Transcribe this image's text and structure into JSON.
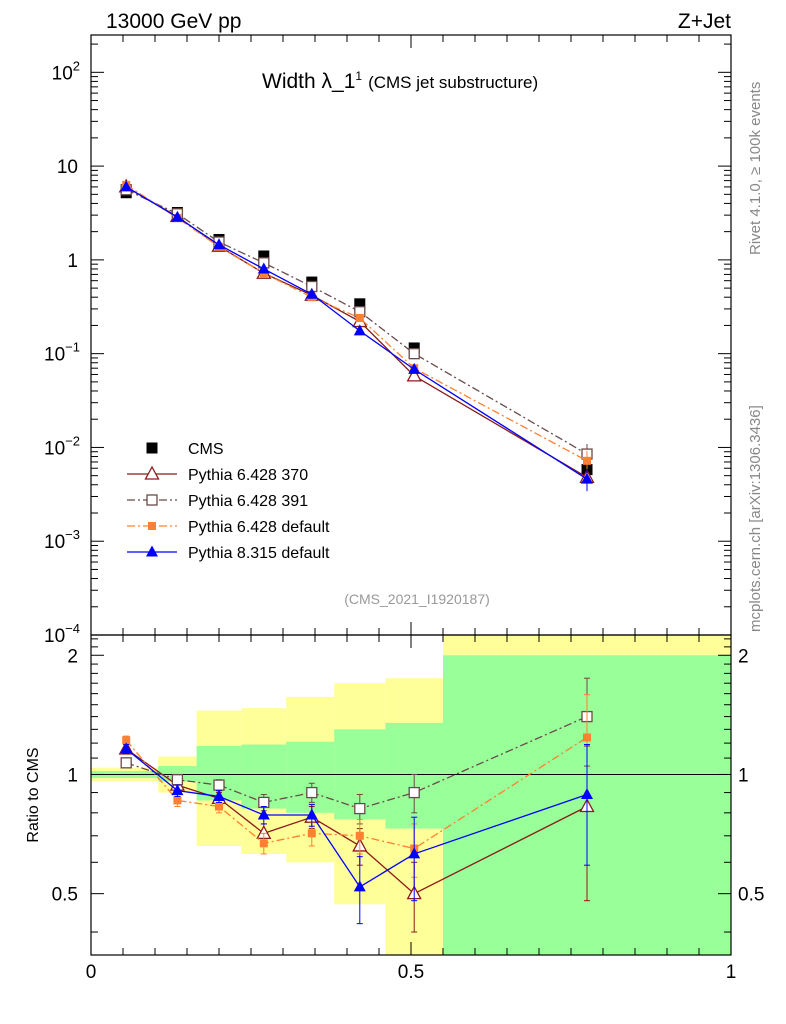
{
  "header": {
    "energy_label": "13000 GeV pp",
    "process_label": "Z+Jet"
  },
  "side_labels": {
    "rivet": "Rivet 4.1.0, ≥ 100k events",
    "mcplots": "mcplots.cern.ch [arXiv:1306.3436]"
  },
  "chart_data": [
    {
      "panel": "main",
      "type": "scatter",
      "title_main": "Width λ_1",
      "title_sup": "1",
      "title_sub": "(CMS jet substructure)",
      "analysis_id": "(CMS_2021_I1920187)",
      "yscale": "log",
      "ylim": [
        0.0001,
        250
      ],
      "xlim": [
        0,
        1
      ],
      "yticks": [
        {
          "base": "10",
          "exp": "2"
        },
        {
          "base": "10",
          "exp": ""
        },
        {
          "base": "1",
          "exp": ""
        },
        {
          "base": "10",
          "exp": "−1"
        },
        {
          "base": "10",
          "exp": "−2"
        },
        {
          "base": "10",
          "exp": "−3"
        },
        {
          "base": "10",
          "exp": "−4"
        }
      ],
      "x": [
        0.055,
        0.135,
        0.2,
        0.27,
        0.345,
        0.42,
        0.505,
        0.775
      ],
      "series": [
        {
          "name": "CMS",
          "color": "#000000",
          "marker": "square-filled",
          "line": "none",
          "values": [
            5.2,
            3.2,
            1.65,
            1.1,
            0.58,
            0.34,
            0.115,
            0.0058
          ]
        },
        {
          "name": "Pythia 6.428 370",
          "color": "#8b1a1a",
          "marker": "triangle-open",
          "line": "solid",
          "values": [
            6.0,
            2.9,
            1.4,
            0.72,
            0.42,
            0.22,
            0.058,
            0.0048
          ]
        },
        {
          "name": "Pythia 6.428 391",
          "color": "#6b4a4a",
          "marker": "square-open",
          "line": "dashdot",
          "values": [
            5.6,
            3.1,
            1.55,
            0.93,
            0.52,
            0.28,
            0.1,
            0.0085
          ]
        },
        {
          "name": "Pythia 6.428 default",
          "color": "#ff8030",
          "marker": "square-filled-small",
          "line": "dashdot",
          "values": [
            6.3,
            2.8,
            1.38,
            0.72,
            0.4,
            0.24,
            0.07,
            0.0072
          ]
        },
        {
          "name": "Pythia 8.315 default",
          "color": "#0000ff",
          "marker": "triangle-filled",
          "line": "solid",
          "values": [
            6.0,
            2.85,
            1.45,
            0.8,
            0.43,
            0.175,
            0.068,
            0.0046
          ]
        }
      ]
    },
    {
      "panel": "ratio",
      "type": "scatter",
      "ylabel": "Ratio to CMS",
      "xlim": [
        0,
        1
      ],
      "ylim": [
        0.35,
        2.25
      ],
      "yticks": [
        "2",
        "1",
        "0.5"
      ],
      "xticks": [
        "0",
        "0.5",
        "1"
      ],
      "bin_edges": [
        0,
        0.105,
        0.165,
        0.235,
        0.305,
        0.38,
        0.46,
        0.55,
        1.0
      ],
      "green_band": {
        "lower": [
          0.98,
          0.96,
          0.86,
          0.82,
          0.8,
          0.77,
          0.73,
          0.35
        ],
        "upper": [
          1.02,
          1.05,
          1.18,
          1.19,
          1.21,
          1.3,
          1.35,
          2.0
        ]
      },
      "yellow_band": {
        "lower": [
          0.96,
          0.9,
          0.66,
          0.63,
          0.6,
          0.47,
          0.35,
          0.35
        ],
        "upper": [
          1.04,
          1.11,
          1.45,
          1.47,
          1.57,
          1.7,
          1.75,
          2.25
        ]
      },
      "x": [
        0.055,
        0.135,
        0.2,
        0.27,
        0.345,
        0.42,
        0.505,
        0.775
      ],
      "series": [
        {
          "name": "Pythia 6.428 370",
          "color": "#8b1a1a",
          "marker": "triangle-open",
          "line": "solid",
          "values": [
            1.16,
            0.94,
            0.87,
            0.71,
            0.78,
            0.66,
            0.5,
            0.83
          ],
          "err": [
            0.03,
            0.03,
            0.03,
            0.04,
            0.05,
            0.07,
            0.1,
            0.35
          ]
        },
        {
          "name": "Pythia 6.428 391",
          "color": "#6b4a4a",
          "marker": "square-open",
          "line": "dashdot",
          "values": [
            1.07,
            0.97,
            0.94,
            0.85,
            0.9,
            0.82,
            0.9,
            1.4
          ],
          "err": [
            0.03,
            0.03,
            0.03,
            0.04,
            0.05,
            0.07,
            0.1,
            0.35
          ]
        },
        {
          "name": "Pythia 6.428 default",
          "color": "#ff8030",
          "marker": "square-filled-small",
          "line": "dashdot",
          "values": [
            1.22,
            0.86,
            0.83,
            0.67,
            0.71,
            0.7,
            0.65,
            1.24
          ],
          "err": [
            0.03,
            0.03,
            0.03,
            0.04,
            0.05,
            0.07,
            0.1,
            0.35
          ]
        },
        {
          "name": "Pythia 8.315 default",
          "color": "#0000ff",
          "marker": "triangle-filled",
          "line": "solid",
          "values": [
            1.16,
            0.91,
            0.88,
            0.79,
            0.79,
            0.52,
            0.63,
            0.89
          ],
          "err": [
            0.03,
            0.03,
            0.03,
            0.04,
            0.05,
            0.1,
            0.15,
            0.3
          ]
        }
      ]
    }
  ]
}
